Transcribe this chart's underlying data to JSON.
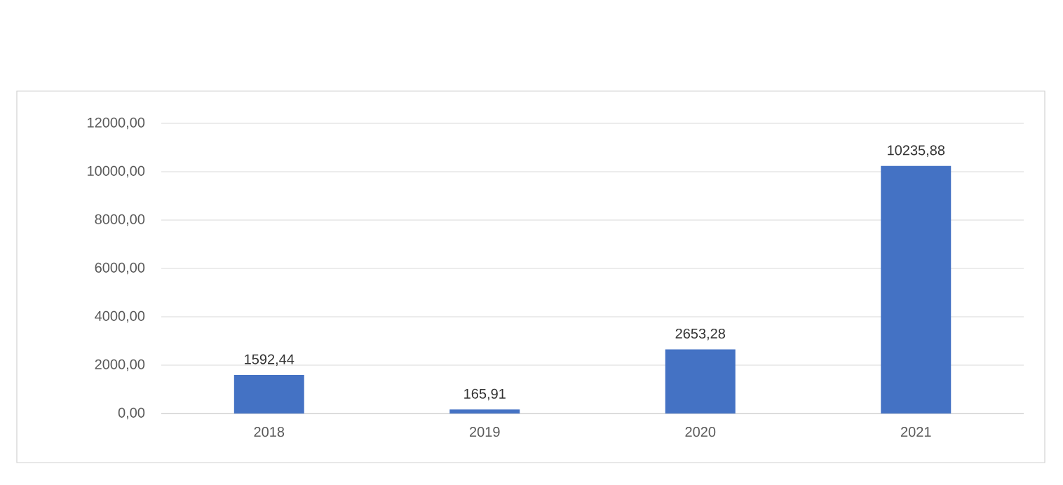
{
  "chart_data": {
    "type": "bar",
    "categories": [
      "2018",
      "2019",
      "2020",
      "2021"
    ],
    "values": [
      1592.44,
      165.91,
      2653.28,
      10235.88
    ],
    "value_labels": [
      "1592,44",
      "165,91",
      "2653,28",
      "10235,88"
    ],
    "color": "#4472c4",
    "ylim": [
      0,
      12000
    ],
    "yticks": [
      {
        "value": 0,
        "label": "0,00"
      },
      {
        "value": 2000,
        "label": "2000,00"
      },
      {
        "value": 4000,
        "label": "4000,00"
      },
      {
        "value": 6000,
        "label": "6000,00"
      },
      {
        "value": 8000,
        "label": "8000,00"
      },
      {
        "value": 10000,
        "label": "10000,00"
      },
      {
        "value": 12000,
        "label": "12000,00"
      }
    ],
    "grid": "y"
  }
}
